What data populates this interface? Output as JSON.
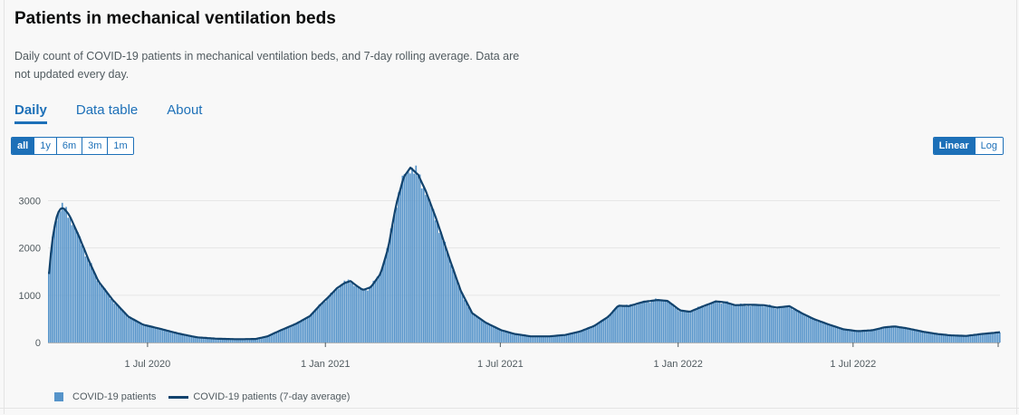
{
  "title": "Patients in mechanical ventilation beds",
  "description": "Daily count of COVID-19 patients in mechanical ventilation beds, and 7-day rolling average. Data are not updated every day.",
  "tabs": [
    {
      "label": "Daily",
      "active": true
    },
    {
      "label": "Data table",
      "active": false
    },
    {
      "label": "About",
      "active": false
    }
  ],
  "range_buttons": [
    {
      "label": "all",
      "active": true
    },
    {
      "label": "1y",
      "active": false
    },
    {
      "label": "6m",
      "active": false
    },
    {
      "label": "3m",
      "active": false
    },
    {
      "label": "1m",
      "active": false
    }
  ],
  "scale_buttons": [
    {
      "label": "Linear",
      "active": true
    },
    {
      "label": "Log",
      "active": false
    }
  ],
  "colors": {
    "bar": "#5694ca",
    "line": "#12436d",
    "accent": "#1d70b8"
  },
  "chart_data": {
    "type": "bar",
    "x_type": "date",
    "xlim": [
      "2020-03-20",
      "2022-11-30"
    ],
    "ylim": [
      0,
      3700
    ],
    "y_ticks": [
      0,
      1000,
      2000,
      3000
    ],
    "x_ticks": [
      {
        "date": "2020-07-01",
        "label": "1 Jul 2020"
      },
      {
        "date": "2021-01-01",
        "label": "1 Jan 2021"
      },
      {
        "date": "2021-07-01",
        "label": "1 Jul 2021"
      },
      {
        "date": "2022-01-01",
        "label": "1 Jan 2022"
      },
      {
        "date": "2022-07-01",
        "label": "1 Jul 2022"
      }
    ],
    "grid": true,
    "legend_position": "bottom-left",
    "series": [
      {
        "name": "COVID-19 patients",
        "type": "bar",
        "points": [
          [
            "2020-03-20",
            1450
          ],
          [
            "2020-03-23",
            2100
          ],
          [
            "2020-03-27",
            2600
          ],
          [
            "2020-03-31",
            2820
          ],
          [
            "2020-04-04",
            2850
          ],
          [
            "2020-04-10",
            2700
          ],
          [
            "2020-04-20",
            2250
          ],
          [
            "2020-05-01",
            1700
          ],
          [
            "2020-05-10",
            1300
          ],
          [
            "2020-05-25",
            900
          ],
          [
            "2020-06-10",
            550
          ],
          [
            "2020-06-25",
            380
          ],
          [
            "2020-07-15",
            280
          ],
          [
            "2020-08-01",
            190
          ],
          [
            "2020-08-20",
            110
          ],
          [
            "2020-09-10",
            80
          ],
          [
            "2020-10-01",
            70
          ],
          [
            "2020-10-20",
            75
          ],
          [
            "2020-11-01",
            130
          ],
          [
            "2020-11-15",
            260
          ],
          [
            "2020-12-01",
            400
          ],
          [
            "2020-12-15",
            560
          ],
          [
            "2020-12-25",
            780
          ],
          [
            "2021-01-05",
            1000
          ],
          [
            "2021-01-12",
            1150
          ],
          [
            "2021-01-20",
            1260
          ],
          [
            "2021-01-26",
            1300
          ],
          [
            "2021-02-02",
            1190
          ],
          [
            "2021-02-08",
            1110
          ],
          [
            "2021-02-16",
            1170
          ],
          [
            "2021-02-26",
            1450
          ],
          [
            "2021-03-06",
            2000
          ],
          [
            "2021-03-14",
            2900
          ],
          [
            "2021-03-22",
            3500
          ],
          [
            "2021-03-29",
            3700
          ],
          [
            "2021-04-06",
            3550
          ],
          [
            "2021-04-14",
            3200
          ],
          [
            "2021-04-25",
            2600
          ],
          [
            "2021-05-08",
            1800
          ],
          [
            "2021-05-20",
            1100
          ],
          [
            "2021-06-01",
            620
          ],
          [
            "2021-06-15",
            420
          ],
          [
            "2021-07-01",
            260
          ],
          [
            "2021-07-15",
            180
          ],
          [
            "2021-08-01",
            130
          ],
          [
            "2021-08-20",
            130
          ],
          [
            "2021-09-05",
            160
          ],
          [
            "2021-09-20",
            230
          ],
          [
            "2021-10-05",
            350
          ],
          [
            "2021-10-20",
            550
          ],
          [
            "2021-10-30",
            780
          ],
          [
            "2021-11-10",
            770
          ],
          [
            "2021-11-25",
            860
          ],
          [
            "2021-12-10",
            900
          ],
          [
            "2021-12-20",
            880
          ],
          [
            "2022-01-02",
            680
          ],
          [
            "2022-01-12",
            650
          ],
          [
            "2022-01-25",
            760
          ],
          [
            "2022-02-08",
            870
          ],
          [
            "2022-02-18",
            850
          ],
          [
            "2022-02-28",
            790
          ],
          [
            "2022-03-15",
            800
          ],
          [
            "2022-03-30",
            790
          ],
          [
            "2022-04-12",
            740
          ],
          [
            "2022-04-25",
            770
          ],
          [
            "2022-05-08",
            620
          ],
          [
            "2022-05-20",
            500
          ],
          [
            "2022-06-05",
            380
          ],
          [
            "2022-06-20",
            280
          ],
          [
            "2022-07-05",
            240
          ],
          [
            "2022-07-20",
            260
          ],
          [
            "2022-08-01",
            320
          ],
          [
            "2022-08-12",
            340
          ],
          [
            "2022-08-25",
            300
          ],
          [
            "2022-09-10",
            230
          ],
          [
            "2022-09-25",
            180
          ],
          [
            "2022-10-10",
            150
          ],
          [
            "2022-10-25",
            140
          ],
          [
            "2022-11-10",
            180
          ],
          [
            "2022-11-30",
            220
          ]
        ]
      },
      {
        "name": "COVID-19 patients (7-day average)",
        "type": "line"
      }
    ]
  }
}
